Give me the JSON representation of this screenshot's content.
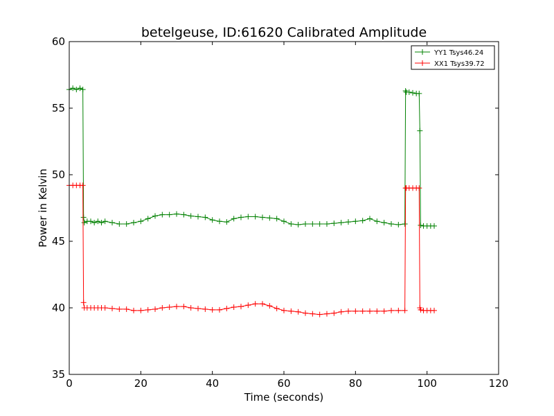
{
  "chart_data": {
    "type": "line",
    "title": "betelgeuse, ID:61620 Calibrated Amplitude",
    "xlabel": "Time (seconds)",
    "ylabel": "Power in Kelvin",
    "xlim": [
      0,
      120
    ],
    "ylim": [
      35,
      60
    ],
    "xticks": [
      0,
      20,
      40,
      60,
      80,
      100,
      120
    ],
    "yticks": [
      35,
      40,
      45,
      50,
      55,
      60
    ],
    "grid": false,
    "legend_position": "top-right",
    "marker": "+",
    "series": [
      {
        "name": "YY1 Tsys46.24",
        "color": "#008000",
        "x": [
          0,
          1,
          2,
          3,
          3.8,
          4,
          4.2,
          5,
          6,
          7,
          8,
          9,
          10,
          12,
          14,
          16,
          18,
          20,
          22,
          24,
          26,
          28,
          30,
          32,
          34,
          36,
          38,
          40,
          42,
          44,
          46,
          48,
          50,
          52,
          54,
          56,
          58,
          60,
          62,
          64,
          66,
          68,
          70,
          72,
          74,
          76,
          78,
          80,
          82,
          84,
          86,
          88,
          90,
          92,
          93.8,
          94,
          94.2,
          95,
          96,
          97,
          97.8,
          98,
          98.2,
          99,
          100,
          101,
          102
        ],
        "values": [
          56.4,
          56.5,
          56.4,
          56.5,
          56.4,
          46.8,
          46.4,
          46.5,
          46.5,
          46.4,
          46.5,
          46.4,
          46.5,
          46.4,
          46.3,
          46.3,
          46.4,
          46.5,
          46.7,
          46.9,
          47.0,
          47.0,
          47.05,
          47.0,
          46.9,
          46.85,
          46.8,
          46.6,
          46.5,
          46.45,
          46.7,
          46.8,
          46.85,
          46.85,
          46.8,
          46.75,
          46.7,
          46.5,
          46.3,
          46.25,
          46.3,
          46.3,
          46.3,
          46.3,
          46.35,
          46.4,
          46.45,
          46.5,
          46.55,
          46.7,
          46.5,
          46.4,
          46.3,
          46.25,
          46.3,
          56.3,
          56.2,
          56.2,
          56.15,
          56.1,
          56.1,
          53.3,
          46.2,
          46.15,
          46.15,
          46.15,
          46.15
        ]
      },
      {
        "name": "XX1 Tsys39.72",
        "color": "#ff0000",
        "x": [
          0,
          1,
          2,
          3,
          3.8,
          4,
          4.2,
          5,
          6,
          7,
          8,
          9,
          10,
          12,
          14,
          16,
          18,
          20,
          22,
          24,
          26,
          28,
          30,
          32,
          34,
          36,
          38,
          40,
          42,
          44,
          46,
          48,
          50,
          52,
          54,
          56,
          58,
          60,
          62,
          64,
          66,
          68,
          70,
          72,
          74,
          76,
          78,
          80,
          82,
          84,
          86,
          88,
          90,
          92,
          93.8,
          94,
          94.2,
          95,
          96,
          97,
          97.8,
          98,
          98.2,
          99,
          100,
          101,
          102
        ],
        "values": [
          49.2,
          49.2,
          49.2,
          49.2,
          49.2,
          40.4,
          40.0,
          40.0,
          40.0,
          40.0,
          40.0,
          40.0,
          40.0,
          39.95,
          39.9,
          39.9,
          39.8,
          39.8,
          39.85,
          39.9,
          40.0,
          40.05,
          40.1,
          40.1,
          40.0,
          39.95,
          39.9,
          39.85,
          39.85,
          39.95,
          40.05,
          40.1,
          40.2,
          40.3,
          40.3,
          40.15,
          39.95,
          39.8,
          39.75,
          39.7,
          39.6,
          39.55,
          39.5,
          39.55,
          39.6,
          39.7,
          39.75,
          39.75,
          39.75,
          39.75,
          39.75,
          39.75,
          39.8,
          39.8,
          39.8,
          49.0,
          49.0,
          49.0,
          49.0,
          49.0,
          49.0,
          40.0,
          39.85,
          39.8,
          39.8,
          39.8,
          39.8
        ]
      }
    ]
  }
}
